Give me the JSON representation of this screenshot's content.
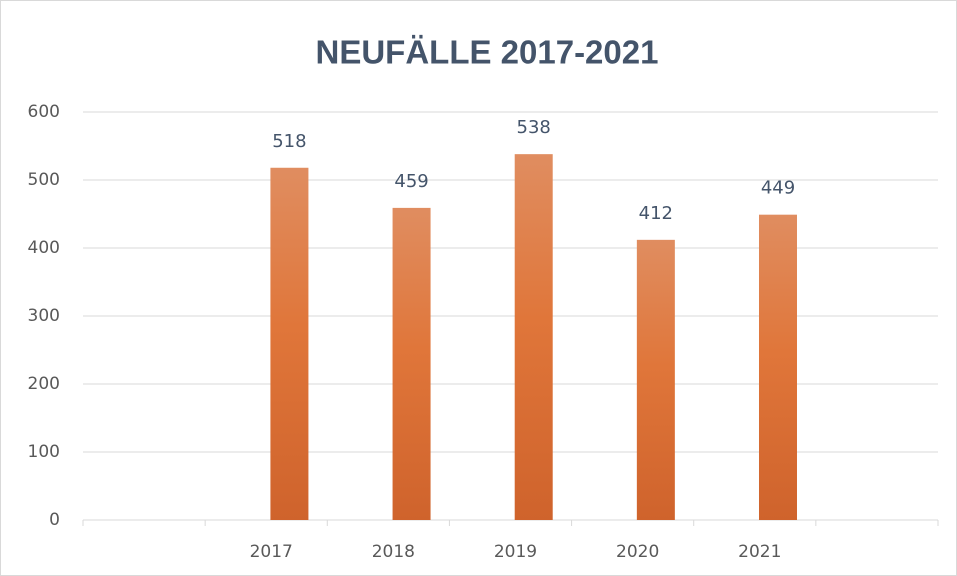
{
  "chart_data": {
    "type": "bar",
    "title": "NEUFÄLLE  2017-2021",
    "categories": [
      null,
      "2017",
      "2018",
      "2019",
      "2020",
      "2021",
      null
    ],
    "values": [
      null,
      518,
      459,
      538,
      412,
      449,
      null
    ],
    "color": "#e07b3f",
    "ylim": [
      0,
      600
    ],
    "yticks": [
      0,
      100,
      200,
      300,
      400,
      500,
      600
    ],
    "grid": true
  }
}
